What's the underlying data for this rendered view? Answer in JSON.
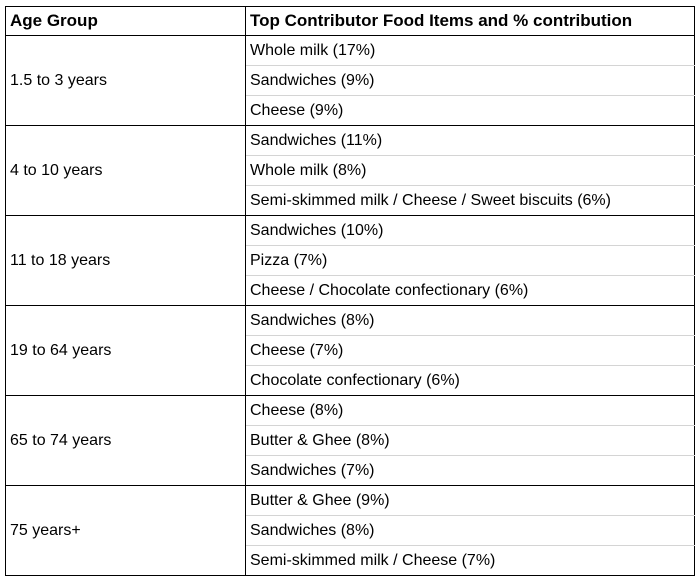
{
  "table": {
    "headers": {
      "age_group": "Age Group",
      "contributors": "Top Contributor Food Items and % contribution"
    },
    "groups": [
      {
        "age": "1.5 to 3 years",
        "items": [
          "Whole milk (17%)",
          "Sandwiches (9%)",
          "Cheese (9%)"
        ]
      },
      {
        "age": "4 to 10 years",
        "items": [
          "Sandwiches (11%)",
          "Whole milk (8%)",
          "Semi-skimmed milk / Cheese / Sweet biscuits (6%)"
        ]
      },
      {
        "age": "11 to 18 years",
        "items": [
          "Sandwiches (10%)",
          "Pizza (7%)",
          "Cheese / Chocolate confectionary (6%)"
        ]
      },
      {
        "age": "19 to 64 years",
        "items": [
          "Sandwiches (8%)",
          "Cheese (7%)",
          "Chocolate confectionary (6%)"
        ]
      },
      {
        "age": "65 to 74 years",
        "items": [
          "Cheese (8%)",
          "Butter & Ghee (8%)",
          "Sandwiches (7%)"
        ]
      },
      {
        "age": "75 years+",
        "items": [
          "Butter & Ghee (9%)",
          "Sandwiches (8%)",
          "Semi-skimmed milk / Cheese (7%)"
        ]
      }
    ]
  }
}
